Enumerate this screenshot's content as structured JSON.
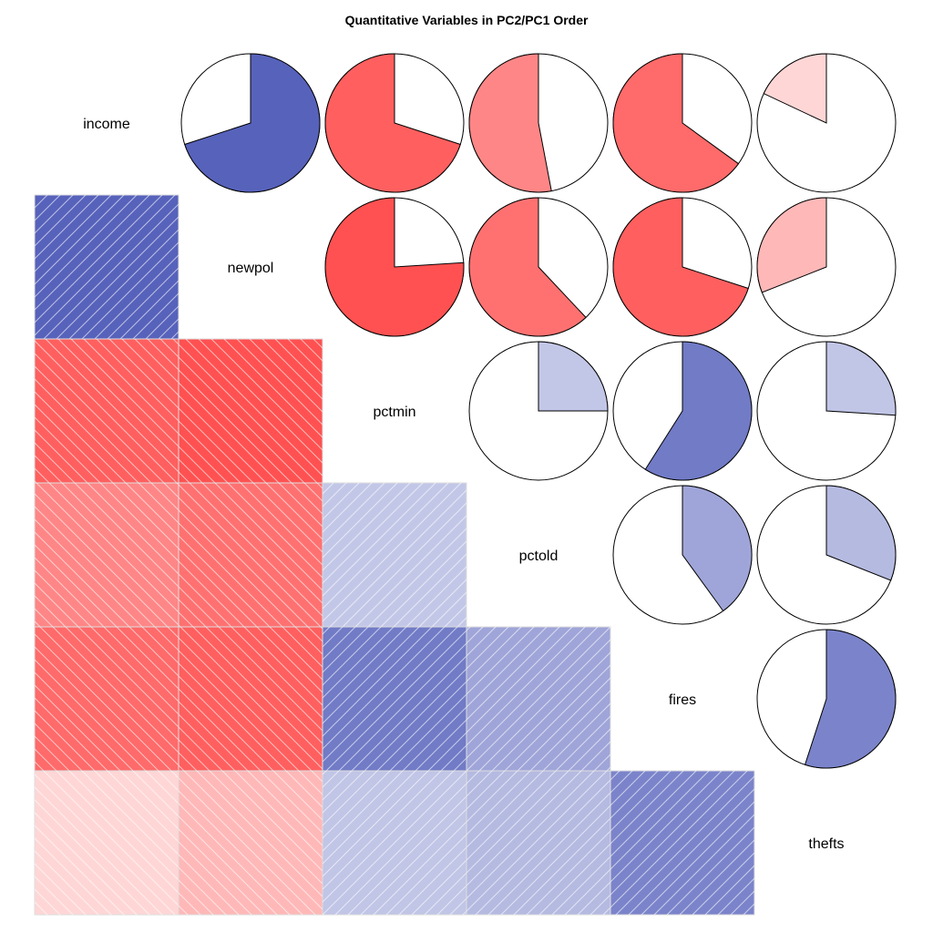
{
  "chart_data": {
    "type": "heatmap",
    "title": "Quantitative Variables in PC2/PC1 Order",
    "variables": [
      "income",
      "newpol",
      "pctmin",
      "pctold",
      "fires",
      "thefts"
    ],
    "lower_panel": "shade",
    "upper_panel": "pie",
    "correlations": [
      [
        1.0,
        0.7,
        -0.7,
        -0.53,
        -0.65,
        -0.18
      ],
      [
        0.7,
        1.0,
        -0.76,
        -0.62,
        -0.7,
        -0.31
      ],
      [
        -0.7,
        -0.76,
        1.0,
        0.25,
        0.59,
        0.26
      ],
      [
        -0.53,
        -0.62,
        0.25,
        1.0,
        0.4,
        0.31
      ],
      [
        -0.65,
        -0.7,
        0.59,
        0.4,
        1.0,
        0.55
      ],
      [
        -0.18,
        -0.31,
        0.26,
        0.31,
        0.55,
        1.0
      ]
    ],
    "colors": {
      "positive_strong": "#0f1f9e",
      "negative_strong": "#ff1a1a",
      "neutral": "#ffffff",
      "cell_line": "#dddddd",
      "pie_outline": "#000000"
    }
  }
}
